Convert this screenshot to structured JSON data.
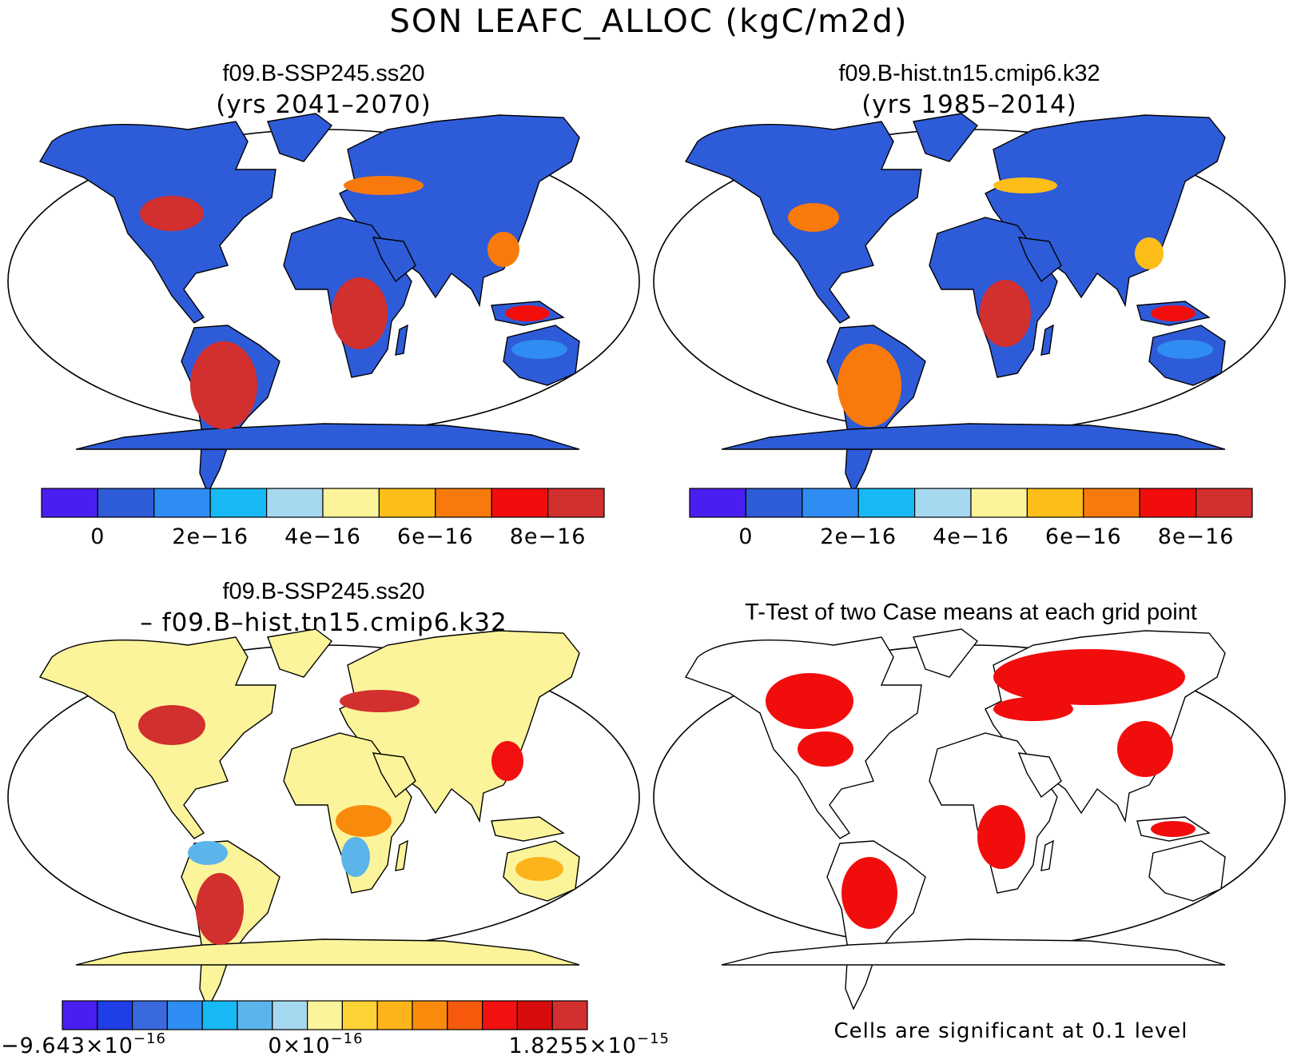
{
  "title": "SON LEAFC_ALLOC (kgC/m2d)",
  "panels": [
    {
      "id": "top-left",
      "title": "f09.B-SSP245.ss20",
      "subtitle": "(yrs 2041–2070)",
      "fill": "#2e5bd8",
      "colorbar": {
        "colors": [
          "#4a1ef0",
          "#2e5bd8",
          "#2f8cf2",
          "#17b9f4",
          "#a6d8f0",
          "#fbf49a",
          "#fdbe1a",
          "#f97a0c",
          "#f20d0d",
          "#d22f2f"
        ],
        "labels": [
          "0",
          "2e−16",
          "4e−16",
          "6e−16",
          "8e−16"
        ]
      }
    },
    {
      "id": "top-right",
      "title": "f09.B-hist.tn15.cmip6.k32",
      "subtitle": "(yrs 1985–2014)",
      "fill": "#2e5bd8",
      "colorbar": {
        "colors": [
          "#4a1ef0",
          "#2e5bd8",
          "#2f8cf2",
          "#17b9f4",
          "#a6d8f0",
          "#fbf49a",
          "#fdbe1a",
          "#f97a0c",
          "#f20d0d",
          "#d22f2f"
        ],
        "labels": [
          "0",
          "2e−16",
          "4e−16",
          "6e−16",
          "8e−16"
        ]
      }
    },
    {
      "id": "bottom-left",
      "title": "f09.B-SSP245.ss20",
      "subtitle": "– f09.B–hist.tn15.cmip6.k32",
      "fill": "#fbf49a",
      "colorbar": {
        "colors": [
          "#4a1ef0",
          "#1f3ee8",
          "#3a68dd",
          "#2f8cf2",
          "#17b9f4",
          "#5cb5ea",
          "#a6d8f0",
          "#fbf49a",
          "#fdd235",
          "#fdb31a",
          "#f98a0c",
          "#f75a0c",
          "#f21010",
          "#d80c0c",
          "#d22f2f"
        ],
        "labels": [
          "−9.643×10",
          "0×10",
          "1.8255×10"
        ],
        "exponents": [
          "−16",
          "−16",
          "−15"
        ]
      }
    },
    {
      "id": "bottom-right",
      "title": "T-Test of two Case means at each grid point",
      "fill": "#ffffff",
      "note": "Cells are significant at 0.1 level",
      "highlight": "#f20d0d"
    }
  ]
}
